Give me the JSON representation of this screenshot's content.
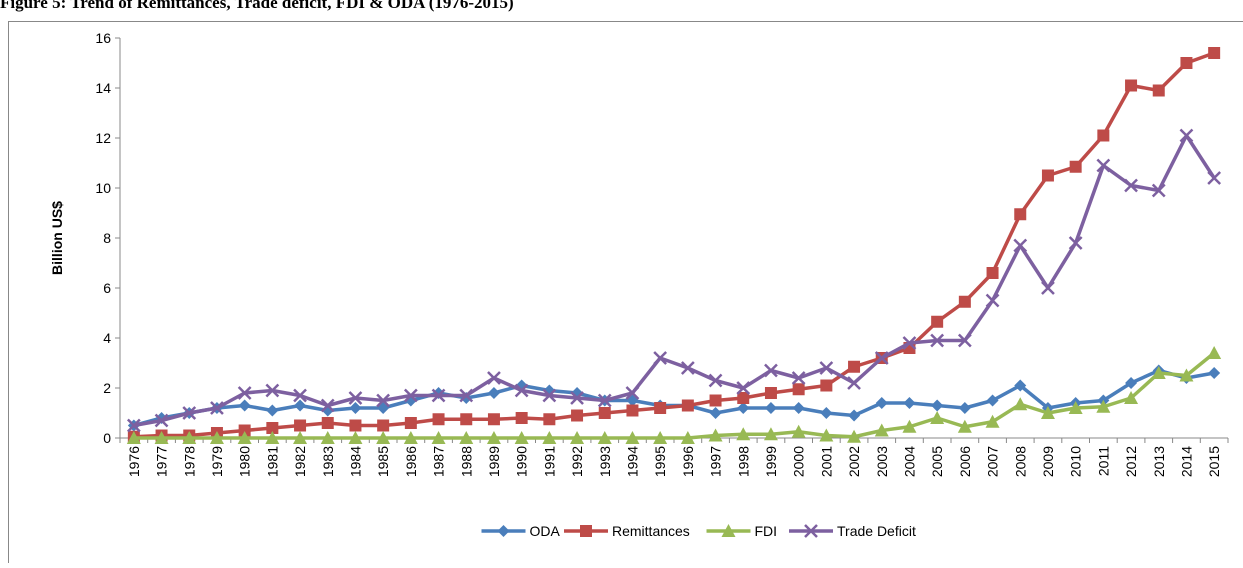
{
  "chart_data": {
    "type": "line",
    "title": "Figure 5: Trend of Remittances, Trade deficit, FDI & ODA (1976-2015)",
    "y_label": "Billion  US$",
    "categories": [
      "1976",
      "1977",
      "1978",
      "1979",
      "1980",
      "1981",
      "1982",
      "1983",
      "1984",
      "1985",
      "1986",
      "1987",
      "1988",
      "1989",
      "1990",
      "1991",
      "1992",
      "1993",
      "1994",
      "1995",
      "1996",
      "1997",
      "1998",
      "1999",
      "2000",
      "2001",
      "2002",
      "2003",
      "2004",
      "2005",
      "2006",
      "2007",
      "2008",
      "2009",
      "2010",
      "2011",
      "2012",
      "2013",
      "2014",
      "2015"
    ],
    "series": [
      {
        "name": "ODA",
        "color": "#4a7ebb",
        "marker": "diamond",
        "values": [
          0.5,
          0.8,
          1.0,
          1.2,
          1.3,
          1.1,
          1.3,
          1.1,
          1.2,
          1.2,
          1.5,
          1.8,
          1.6,
          1.8,
          2.1,
          1.9,
          1.8,
          1.5,
          1.5,
          1.3,
          1.3,
          1.0,
          1.2,
          1.2,
          1.2,
          1.0,
          0.9,
          1.4,
          1.4,
          1.3,
          1.2,
          1.5,
          2.1,
          1.2,
          1.4,
          1.5,
          2.2,
          2.7,
          2.4,
          2.6
        ]
      },
      {
        "name": "Remittances",
        "color": "#be4b48",
        "marker": "square",
        "values": [
          0.05,
          0.1,
          0.1,
          0.2,
          0.3,
          0.4,
          0.5,
          0.6,
          0.5,
          0.5,
          0.6,
          0.75,
          0.75,
          0.75,
          0.8,
          0.75,
          0.9,
          1.0,
          1.1,
          1.2,
          1.3,
          1.5,
          1.6,
          1.8,
          1.95,
          2.1,
          2.85,
          3.2,
          3.6,
          4.65,
          5.45,
          6.6,
          8.95,
          10.5,
          10.85,
          12.1,
          14.1,
          13.9,
          15.0,
          15.4
        ]
      },
      {
        "name": "FDI",
        "color": "#98b954",
        "marker": "triangle",
        "values": [
          0,
          0,
          0,
          0,
          0,
          0,
          0,
          0,
          0,
          0,
          0,
          0,
          0,
          0,
          0,
          0,
          0,
          0,
          0,
          0,
          0,
          0.1,
          0.15,
          0.15,
          0.25,
          0.1,
          0.05,
          0.3,
          0.45,
          0.8,
          0.45,
          0.65,
          1.35,
          1.0,
          1.2,
          1.25,
          1.6,
          2.6,
          2.5,
          3.4
        ]
      },
      {
        "name": "Trade Deficit",
        "color": "#7d60a0",
        "marker": "x",
        "values": [
          0.5,
          0.7,
          1.0,
          1.2,
          1.8,
          1.9,
          1.7,
          1.3,
          1.6,
          1.5,
          1.7,
          1.7,
          1.7,
          2.4,
          1.9,
          1.7,
          1.6,
          1.5,
          1.8,
          3.2,
          2.8,
          2.3,
          2.0,
          2.7,
          2.4,
          2.8,
          2.2,
          3.2,
          3.8,
          3.9,
          3.9,
          5.5,
          7.7,
          6.0,
          7.8,
          10.9,
          10.1,
          9.9,
          12.1,
          10.4
        ]
      }
    ],
    "ylim": [
      0,
      16
    ],
    "yticks": [
      0,
      2,
      4,
      6,
      8,
      10,
      12,
      14,
      16
    ],
    "grid": false,
    "legend": "bottom"
  }
}
